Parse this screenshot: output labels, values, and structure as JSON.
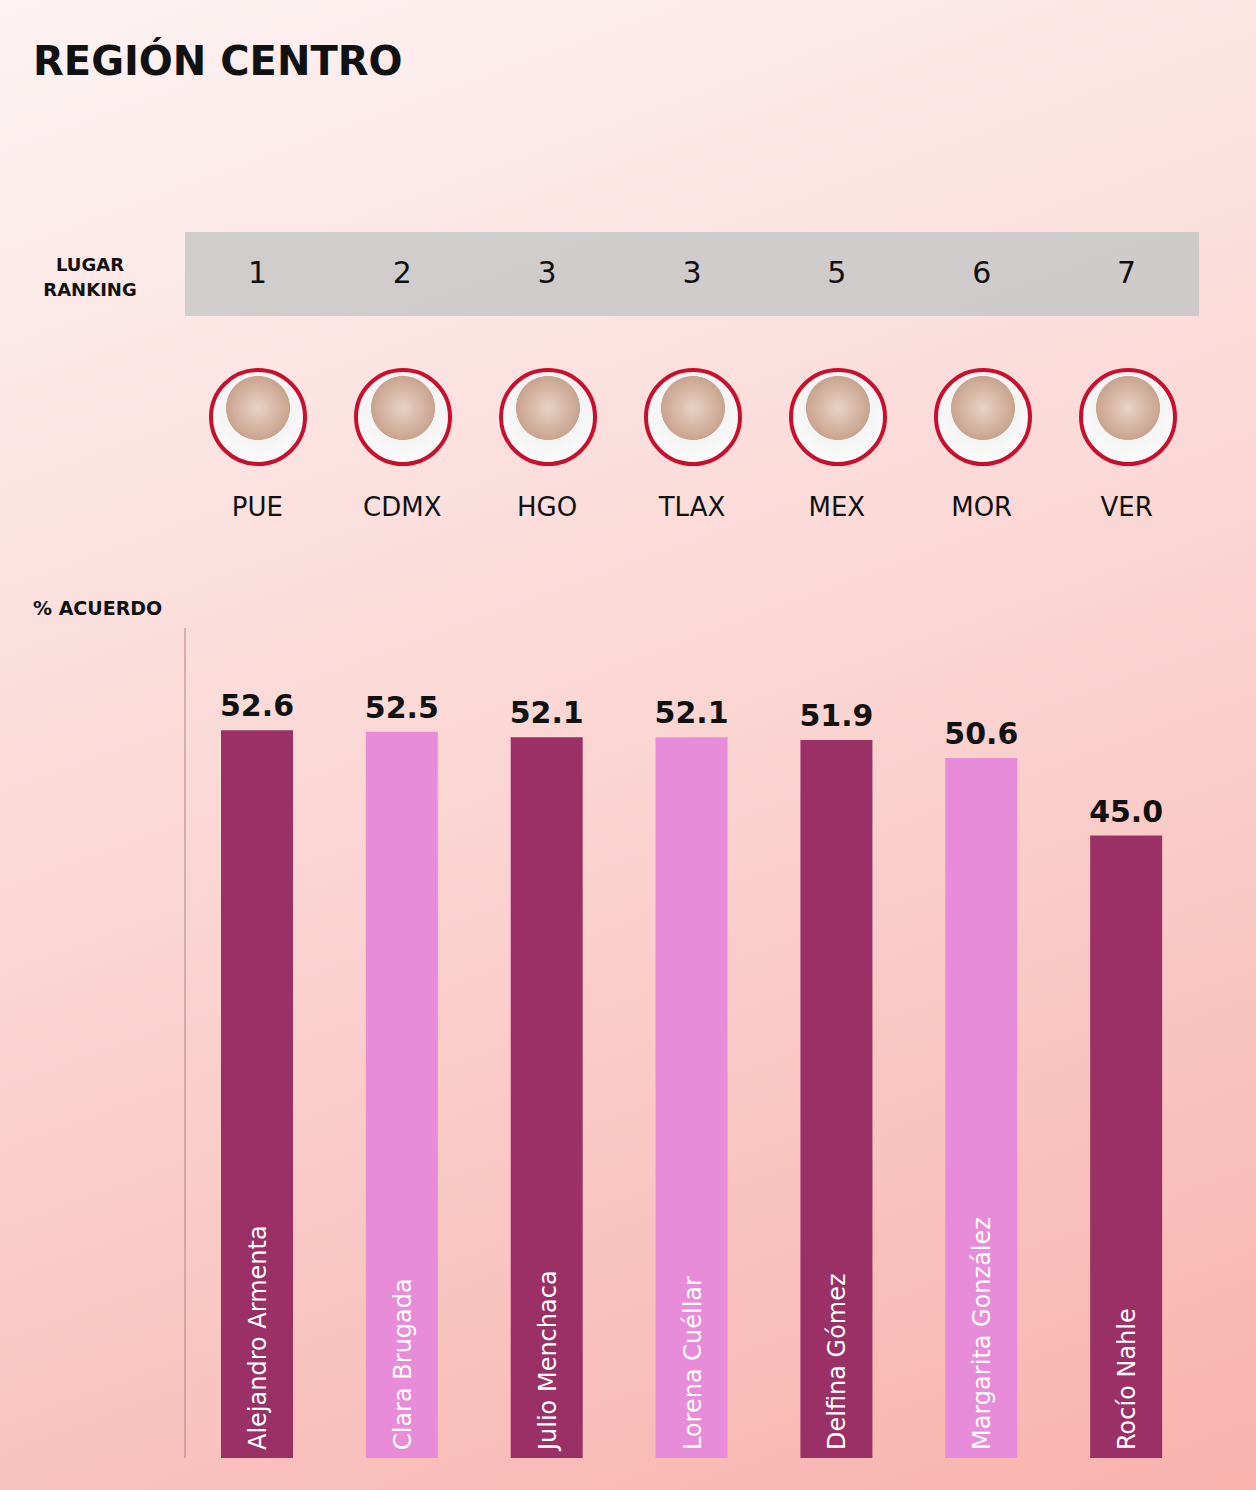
{
  "chart_data": {
    "type": "bar",
    "title": "REGIÓN CENTRO",
    "rank_header": "LUGAR RANKING",
    "y_label": "% ACUERDO",
    "categories": [
      "Alejandro Armenta",
      "Clara Brugada",
      "Julio Menchaca",
      "Lorena Cuéllar",
      "Delfina Gómez",
      "Margarita González",
      "Rocío Nahle"
    ],
    "states": [
      "PUE",
      "CDMX",
      "HGO",
      "TLAX",
      "MEX",
      "MOR",
      "VER"
    ],
    "ranks": [
      1,
      2,
      3,
      3,
      5,
      6,
      7
    ],
    "values": [
      52.6,
      52.5,
      52.1,
      52.1,
      51.9,
      50.6,
      45.0
    ],
    "value_labels": [
      "52.6",
      "52.5",
      "52.1",
      "52.1",
      "51.9",
      "50.6",
      "45.0"
    ],
    "colors": [
      "#9b3066",
      "#e88bd8",
      "#9b3066",
      "#e88bd8",
      "#9b3066",
      "#e88bd8",
      "#9b3066"
    ],
    "ylim": [
      0,
      60
    ],
    "data_labels": true,
    "tick_labels": false,
    "grid": false
  }
}
